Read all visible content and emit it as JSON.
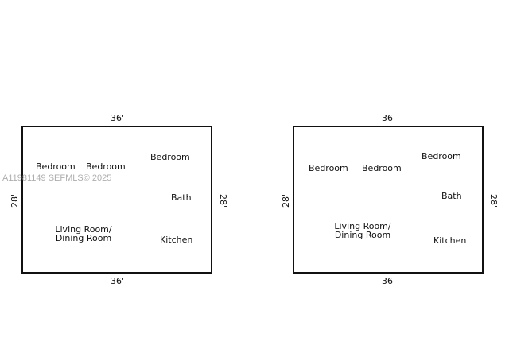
{
  "plans": [
    {
      "top_dim": "36'",
      "bottom_dim": "36'",
      "left_dim": "28'",
      "right_dim": "28'",
      "rooms": {
        "bedroom1": "Bedroom",
        "bedroom2": "Bedroom",
        "bedroom3": "Bedroom",
        "bath": "Bath",
        "living_line1": "Living Room/",
        "living_line2": "Dining Room",
        "kitchen": "Kitchen"
      }
    },
    {
      "top_dim": "36'",
      "bottom_dim": "36'",
      "left_dim": "28'",
      "right_dim": "28'",
      "rooms": {
        "bedroom1": "Bedroom",
        "bedroom2": "Bedroom",
        "bedroom3": "Bedroom",
        "bath": "Bath",
        "living_line1": "Living Room/",
        "living_line2": "Dining Room",
        "kitchen": "Kitchen"
      }
    }
  ],
  "watermark": "A11981149 SEFMLS© 2025"
}
